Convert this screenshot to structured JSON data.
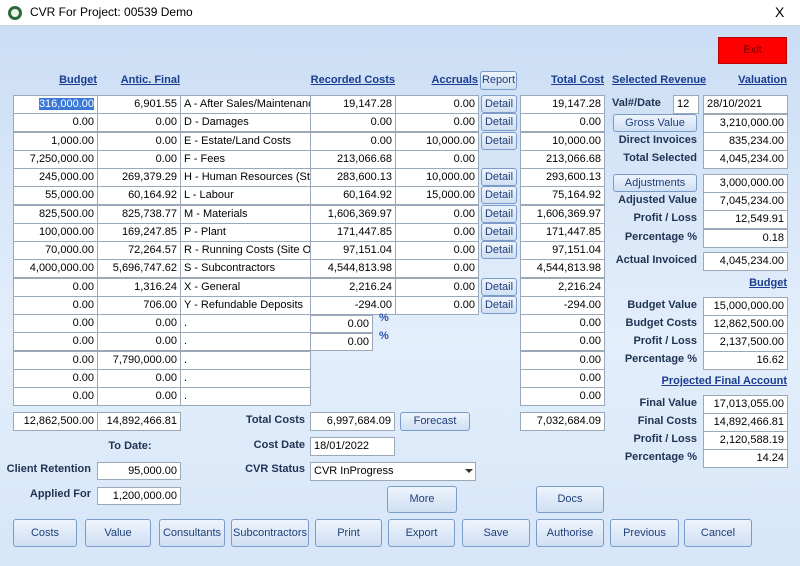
{
  "title_bar": {
    "title": "CVR For Project: 00539 Demo",
    "close": "X"
  },
  "exit_button": "Exit",
  "headers": {
    "budget": "Budget",
    "antic_final": "Antic. Final",
    "recorded_costs": "Recorded Costs",
    "accruals": "Accruals",
    "report_button": "Report",
    "total_cost": "Total Cost",
    "selected_revenue": "Selected Revenue",
    "valuation": "Valuation"
  },
  "rows": [
    {
      "budget": "316,000.00",
      "antic_final": "6,901.55",
      "category": "A - After Sales/Maintenance",
      "recorded": "19,147.28",
      "accrual": "0.00",
      "detail": "Detail",
      "total": "19,147.28"
    },
    {
      "budget": "0.00",
      "antic_final": "0.00",
      "category": "D - Damages",
      "recorded": "0.00",
      "accrual": "0.00",
      "detail": "Detail",
      "total": "0.00"
    },
    {
      "budget": "1,000.00",
      "antic_final": "0.00",
      "category": "E - Estate/Land Costs",
      "recorded": "0.00",
      "accrual": "10,000.00",
      "detail": "Detail",
      "total": "10,000.00"
    },
    {
      "budget": "7,250,000.00",
      "antic_final": "0.00",
      "category": "F - Fees",
      "recorded": "213,066.68",
      "accrual": "0.00",
      "total": "213,066.68"
    },
    {
      "budget": "245,000.00",
      "antic_final": "269,379.29",
      "category": "H - Human Resources (Staff)",
      "recorded": "283,600.13",
      "accrual": "10,000.00",
      "detail": "Detail",
      "total": "293,600.13"
    },
    {
      "budget": "55,000.00",
      "antic_final": "60,164.92",
      "category": "L - Labour",
      "recorded": "60,164.92",
      "accrual": "15,000.00",
      "detail": "Detail",
      "total": "75,164.92"
    },
    {
      "budget": "825,500.00",
      "antic_final": "825,738.77",
      "category": "M - Materials",
      "recorded": "1,606,369.97",
      "accrual": "0.00",
      "detail": "Detail",
      "total": "1,606,369.97"
    },
    {
      "budget": "100,000.00",
      "antic_final": "169,247.85",
      "category": "P - Plant",
      "recorded": "171,447.85",
      "accrual": "0.00",
      "detail": "Detail",
      "total": "171,447.85"
    },
    {
      "budget": "70,000.00",
      "antic_final": "72,264.57",
      "category": "R - Running Costs (Site Overl",
      "recorded": "97,151.04",
      "accrual": "0.00",
      "detail": "Detail",
      "total": "97,151.04"
    },
    {
      "budget": "4,000,000.00",
      "antic_final": "5,696,747.62",
      "category": "S - Subcontractors",
      "recorded": "4,544,813.98",
      "accrual": "0.00",
      "total": "4,544,813.98"
    },
    {
      "budget": "0.00",
      "antic_final": "1,316.24",
      "category": "X - General",
      "recorded": "2,216.24",
      "accrual": "0.00",
      "detail": "Detail",
      "total": "2,216.24"
    },
    {
      "budget": "0.00",
      "antic_final": "706.00",
      "category": "Y - Refundable Deposits",
      "recorded": "-294.00",
      "accrual": "0.00",
      "detail": "Detail",
      "total": "-294.00"
    },
    {
      "budget": "0.00",
      "antic_final": "0.00",
      "category": ".",
      "recorded": "0.00",
      "unit": "%",
      "total": "0.00"
    },
    {
      "budget": "0.00",
      "antic_final": "0.00",
      "category": ".",
      "recorded": "0.00",
      "unit": "%",
      "total": "0.00"
    },
    {
      "budget": "0.00",
      "antic_final": "7,790,000.00",
      "category": ".",
      "total": "0.00"
    },
    {
      "budget": "0.00",
      "antic_final": "0.00",
      "category": ".",
      "total": "0.00"
    },
    {
      "budget": "0.00",
      "antic_final": "0.00",
      "category": ".",
      "total": "0.00"
    }
  ],
  "totals": {
    "budget": "12,862,500.00",
    "antic_final": "14,892,466.81",
    "total_costs_label": "Total Costs",
    "recorded": "6,997,684.09",
    "forecast_button": "Forecast",
    "total": "7,032,684.09"
  },
  "footer_fields": {
    "to_date": "To Date:",
    "client_retention_label": "Client Retention",
    "client_retention": "95,000.00",
    "applied_for_label": "Applied For",
    "applied_for": "1,200,000.00",
    "cost_date_label": "Cost Date",
    "cost_date": "18/01/2022",
    "cvr_status_label": "CVR Status",
    "cvr_status": "CVR InProgress",
    "more_button": "More",
    "docs_button": "Docs"
  },
  "valuation": {
    "val_date_label": "Val#/Date",
    "val_number": "12",
    "val_date": "28/10/2021",
    "items": [
      {
        "label": "Gross Value",
        "value": "3,210,000.00",
        "button": true
      },
      {
        "label": "Direct Invoices",
        "value": "835,234.00"
      },
      {
        "label": "Total Selected",
        "value": "4,045,234.00"
      },
      {
        "label": "Adjustments",
        "value": "3,000,000.00",
        "button": true
      },
      {
        "label": "Adjusted Value",
        "value": "7,045,234.00"
      },
      {
        "label": "Profit / Loss",
        "value": "12,549.91"
      },
      {
        "label": "Percentage %",
        "value": "0.18"
      },
      {
        "label": "Actual Invoiced",
        "value": "4,045,234.00"
      }
    ],
    "budget_heading": "Budget",
    "budget_items": [
      {
        "label": "Budget Value",
        "value": "15,000,000.00"
      },
      {
        "label": "Budget Costs",
        "value": "12,862,500.00"
      },
      {
        "label": "Profit / Loss",
        "value": "2,137,500.00"
      },
      {
        "label": "Percentage %",
        "value": "16.62"
      }
    ],
    "projected_heading": "Projected Final Account",
    "projected_items": [
      {
        "label": "Final Value",
        "value": "17,013,055.00"
      },
      {
        "label": "Final Costs",
        "value": "14,892,466.81"
      },
      {
        "label": "Profit / Loss",
        "value": "2,120,588.19"
      },
      {
        "label": "Percentage %",
        "value": "14.24"
      }
    ]
  },
  "bottom_buttons": [
    "Costs",
    "Value",
    "Consultants",
    "Subcontractors",
    "Print",
    "Export",
    "Save",
    "Authorise",
    "Previous",
    "Cancel"
  ]
}
